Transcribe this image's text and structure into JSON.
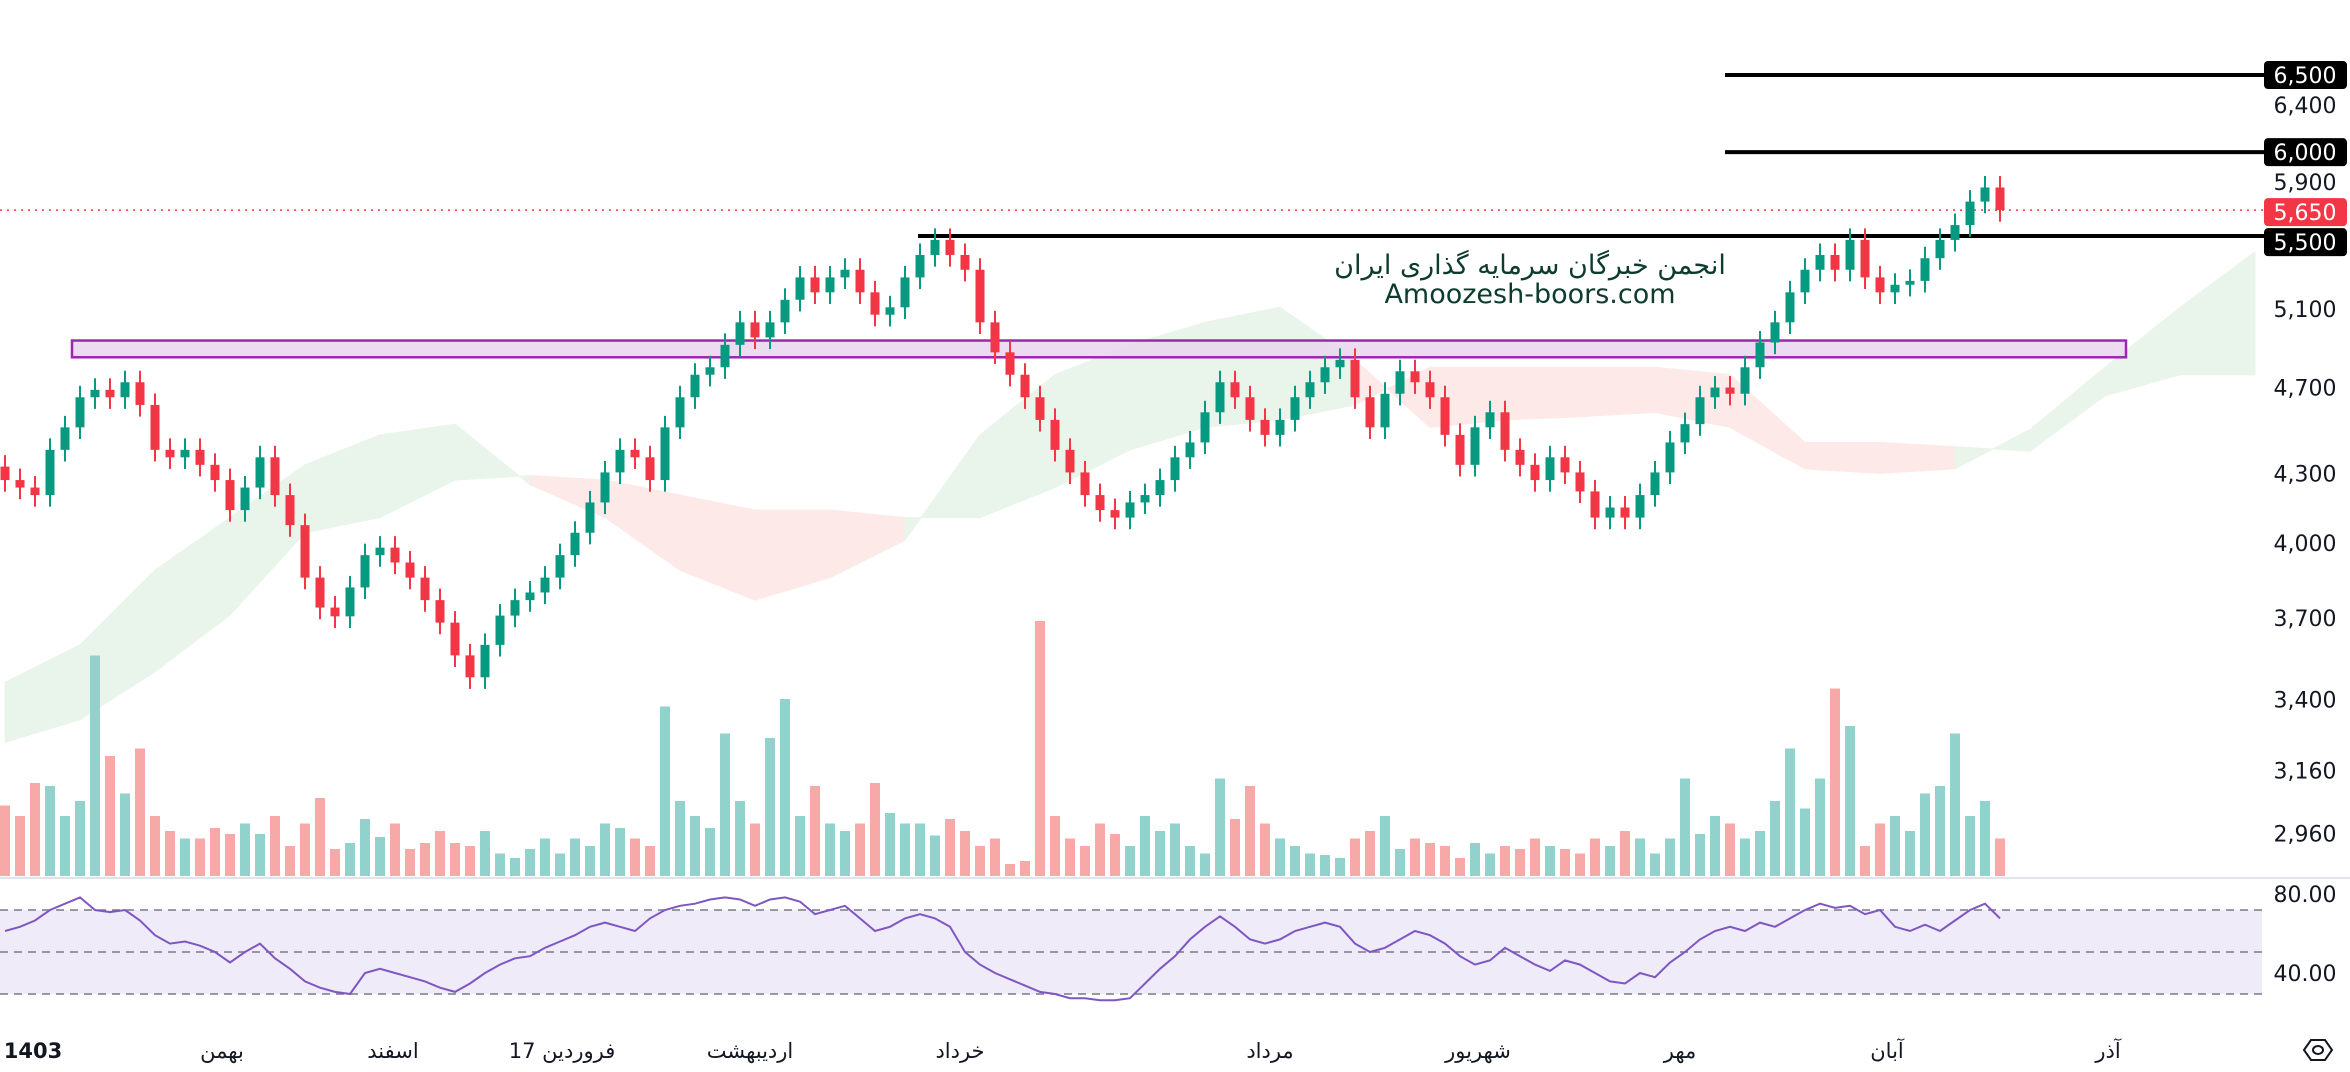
{
  "watermark": {
    "line1": "انجمن خبرگان سرمایه گذاری ایران",
    "line2": "Amoozesh-boors.com"
  },
  "colors": {
    "up": "#089981",
    "down": "#f23645",
    "volume_up": "#92d2cc",
    "volume_down": "#f7a9a7",
    "cloud_up": "#e9f4ea",
    "cloud_down": "#fde9e7",
    "zone_border": "#9c27b0",
    "zone_fill": "#ead5ef",
    "rsi_line": "#7e57c2",
    "rsi_band": "#efebf9",
    "level_line": "#000000"
  },
  "settings_icon": "hexagon-settings-icon",
  "chart_data": {
    "type": "candlestick",
    "scale": "log",
    "price_ticks": [
      6400,
      5900,
      5100,
      4700,
      4300,
      4000,
      3700,
      3400,
      3160,
      2960
    ],
    "price_tick_labels": [
      "6,400",
      "5,900",
      "5,100",
      "4,700",
      "4,300",
      "4,000",
      "3,700",
      "3,400",
      "3,160",
      "2,960"
    ],
    "close": [
      4270,
      4237,
      4204,
      4406,
      4510,
      4653,
      4689,
      4653,
      4726,
      4616,
      4406,
      4372,
      4406,
      4338,
      4270,
      4139,
      4237,
      4372,
      4204,
      4075,
      3859,
      3741,
      3707,
      3820,
      3950,
      3981,
      3920,
      3859,
      3770,
      3683,
      3560,
      3480,
      3599,
      3710,
      3770,
      3800,
      3859,
      3950,
      4043,
      4172,
      4304,
      4406,
      4372,
      4270,
      4510,
      4653,
      4763,
      4800,
      4913,
      5029,
      4951,
      5029,
      5148,
      5269,
      5188,
      5269,
      5311,
      5188,
      5069,
      5108,
      5269,
      5393,
      5478,
      5393,
      5311,
      5029,
      4875,
      4763,
      4653,
      4545,
      4406,
      4304,
      4204,
      4139,
      4107,
      4172,
      4204,
      4270,
      4372,
      4440,
      4581,
      4726,
      4653,
      4545,
      4475,
      4545,
      4653,
      4726,
      4800,
      4837,
      4653,
      4510,
      4670,
      4780,
      4726,
      4653,
      4475,
      4338,
      4510,
      4581,
      4406,
      4338,
      4270,
      4372,
      4304,
      4220,
      4107,
      4150,
      4107,
      4204,
      4304,
      4440,
      4525,
      4653,
      4700,
      4670,
      4800,
      4925,
      5029,
      5188,
      5311,
      5393,
      5311,
      5478,
      5269,
      5188,
      5229,
      5250,
      5375,
      5478,
      5563,
      5700,
      5784,
      5650
    ],
    "first_open": 4330,
    "volume": [
      47,
      40,
      62,
      60,
      40,
      50,
      147,
      80,
      55,
      85,
      40,
      30,
      25,
      25,
      32,
      28,
      35,
      28,
      40,
      20,
      35,
      52,
      18,
      22,
      38,
      26,
      35,
      18,
      22,
      30,
      22,
      20,
      30,
      15,
      12,
      18,
      25,
      15,
      25,
      20,
      35,
      32,
      25,
      20,
      113,
      50,
      40,
      32,
      95,
      50,
      35,
      92,
      118,
      40,
      60,
      35,
      30,
      35,
      62,
      42,
      35,
      35,
      27,
      38,
      30,
      20,
      25,
      8,
      10,
      170,
      40,
      25,
      20,
      35,
      28,
      20,
      40,
      30,
      35,
      20,
      15,
      65,
      38,
      60,
      35,
      25,
      20,
      15,
      14,
      12,
      25,
      30,
      40,
      18,
      25,
      22,
      20,
      12,
      22,
      15,
      20,
      18,
      25,
      20,
      18,
      15,
      25,
      20,
      30,
      25,
      15,
      25,
      65,
      28,
      40,
      35,
      25,
      30,
      50,
      85,
      45,
      65,
      125,
      100,
      20,
      35,
      40,
      30,
      55,
      60,
      95,
      40,
      50,
      25
    ],
    "ichimoku_cloud": {
      "step_candles": 5,
      "span_a": [
        3462,
        3599,
        3889,
        4107,
        4338,
        4475,
        4525,
        4250,
        4107,
        3889,
        3770,
        3859,
        4012,
        4475,
        4763,
        4913,
        5029,
        5108,
        4837,
        4510,
        4545,
        4560,
        4581,
        4510,
        4320,
        4300,
        4320,
        4500,
        4800,
        5108,
        5410
      ],
      "span_b": [
        3253,
        3330,
        3500,
        3712,
        4043,
        4107,
        4270,
        4290,
        4270,
        4204,
        4139,
        4139,
        4107,
        4107,
        4237,
        4406,
        4510,
        4545,
        4616,
        4800,
        4800,
        4800,
        4800,
        4763,
        4440,
        4440,
        4420,
        4400,
        4660,
        4763,
        4763
      ]
    },
    "horizontal_levels": [
      {
        "price": 6500,
        "label": "6,500"
      },
      {
        "price": 6000,
        "label": "6,000"
      },
      {
        "price": 5500,
        "label": "5,500"
      }
    ],
    "last_price": {
      "price": 5650,
      "label": "5,650"
    },
    "support_zone": {
      "low": 4850,
      "high": 4935
    },
    "rsi": {
      "values": [
        60,
        62,
        65,
        70,
        73,
        76,
        70,
        69,
        70,
        65,
        58,
        54,
        55,
        53,
        50,
        45,
        50,
        54,
        47,
        42,
        36,
        33,
        31,
        30,
        40,
        42,
        40,
        38,
        36,
        33,
        31,
        35,
        40,
        44,
        47,
        48,
        52,
        55,
        58,
        62,
        64,
        62,
        60,
        66,
        70,
        72,
        73,
        75,
        76,
        75,
        72,
        75,
        76,
        74,
        68,
        70,
        72,
        66,
        60,
        62,
        66,
        68,
        66,
        62,
        50,
        44,
        40,
        37,
        34,
        31,
        30,
        28,
        28,
        27,
        27,
        28,
        35,
        42,
        48,
        56,
        62,
        67,
        62,
        56,
        54,
        56,
        60,
        62,
        64,
        62,
        54,
        50,
        52,
        56,
        60,
        58,
        54,
        48,
        44,
        46,
        52,
        48,
        44,
        41,
        46,
        44,
        40,
        36,
        35,
        40,
        38,
        45,
        50,
        56,
        60,
        62,
        60,
        64,
        62,
        66,
        70,
        73,
        71,
        72,
        68,
        70,
        62,
        60,
        63,
        60,
        65,
        70,
        73,
        66
      ],
      "levels": [
        70,
        50,
        30
      ],
      "tick_labels": [
        "80.00",
        "40.00"
      ],
      "ticks": [
        80,
        40
      ]
    },
    "time_labels": [
      "1403",
      "بهمن",
      "اسفند",
      "17 فروردین",
      "اردیبهشت",
      "خرداد",
      "مرداد",
      "شهریور",
      "مهر",
      "آبان",
      "آذر"
    ]
  }
}
